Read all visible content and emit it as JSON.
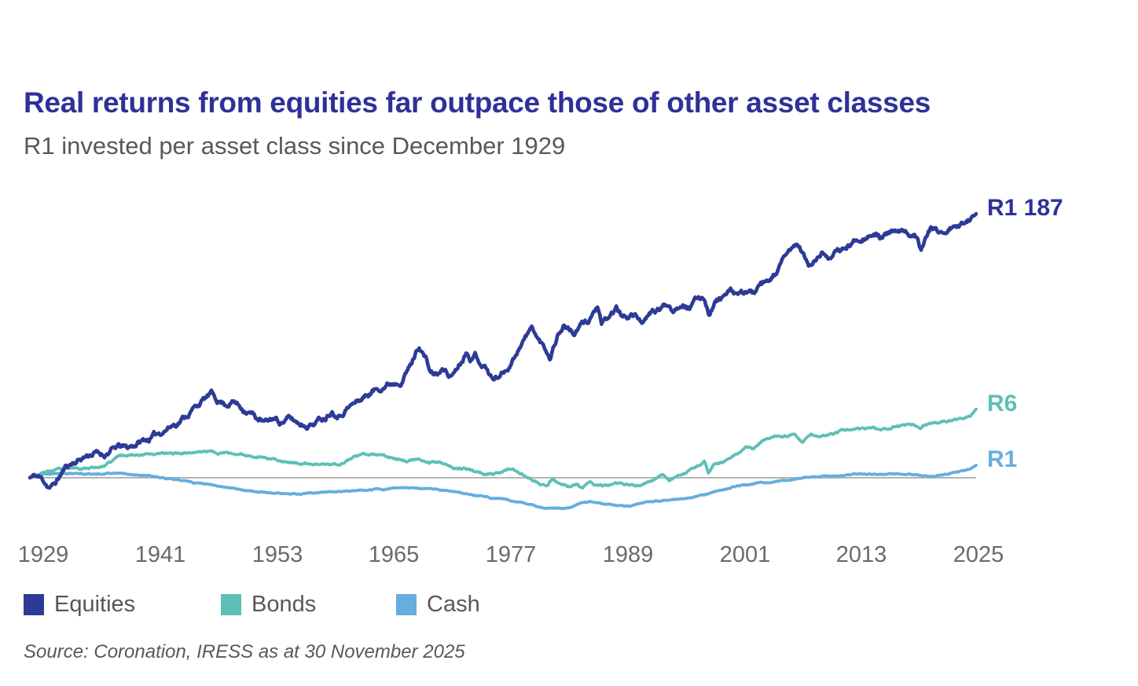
{
  "header": {
    "title": "Real returns from equities far outpace those of other asset classes",
    "subtitle": "R1 invested per asset class since December 1929"
  },
  "chart_data": {
    "type": "line",
    "title": "Real returns from equities far outpace those of other asset classes",
    "subtitle": "R1 invested per asset class since December 1929",
    "y_scale": "log",
    "grid": "off",
    "baseline": {
      "value": 1,
      "color": "#b5b5b5"
    },
    "x_range": [
      1929.92,
      2025.92
    ],
    "x_ticks": [
      {
        "label": "1929",
        "year": 1929
      },
      {
        "label": "1941",
        "year": 1941
      },
      {
        "label": "1953",
        "year": 1953
      },
      {
        "label": "1965",
        "year": 1965
      },
      {
        "label": "1977",
        "year": 1977
      },
      {
        "label": "1989",
        "year": 1989
      },
      {
        "label": "2001",
        "year": 2001
      },
      {
        "label": "2013",
        "year": 2013
      },
      {
        "label": "2025",
        "year": 2025
      }
    ],
    "series": [
      {
        "key": "equities",
        "name": "Equities",
        "color": "#2d3a96",
        "end_label": "R1 187",
        "final_value": 1187,
        "anchors": [
          [
            1929.92,
            1.0
          ],
          [
            1930.3,
            1.06
          ],
          [
            1930.8,
            1.02
          ],
          [
            1931.3,
            0.93
          ],
          [
            1931.8,
            0.8
          ],
          [
            1932.1,
            0.78
          ],
          [
            1932.6,
            0.9
          ],
          [
            1933.2,
            1.15
          ],
          [
            1933.6,
            1.35
          ],
          [
            1934.3,
            1.5
          ],
          [
            1935,
            1.65
          ],
          [
            1935.8,
            1.85
          ],
          [
            1936.6,
            1.95
          ],
          [
            1937.4,
            1.85
          ],
          [
            1938.2,
            2.1
          ],
          [
            1939,
            2.3
          ],
          [
            1939.8,
            2.2
          ],
          [
            1940.6,
            2.45
          ],
          [
            1941.4,
            2.7
          ],
          [
            1942.2,
            2.9
          ],
          [
            1943,
            3.3
          ],
          [
            1944,
            3.9
          ],
          [
            1945,
            4.5
          ],
          [
            1946,
            5.6
          ],
          [
            1947,
            7.2
          ],
          [
            1948.3,
            9.4
          ],
          [
            1949,
            8.0
          ],
          [
            1949.8,
            7.3
          ],
          [
            1950.6,
            7.8
          ],
          [
            1951.4,
            6.6
          ],
          [
            1952.2,
            5.9
          ],
          [
            1953,
            4.9
          ],
          [
            1953.8,
            4.3
          ],
          [
            1954.6,
            4.9
          ],
          [
            1955.4,
            4.5
          ],
          [
            1956.2,
            4.9
          ],
          [
            1957,
            4.4
          ],
          [
            1957.8,
            4.2
          ],
          [
            1958.6,
            4.3
          ],
          [
            1959.9,
            5.2
          ],
          [
            1960.6,
            6.3
          ],
          [
            1961.3,
            5.5
          ],
          [
            1962,
            6.5
          ],
          [
            1962.9,
            7.4
          ],
          [
            1964.4,
            9.7
          ],
          [
            1965.8,
            12.0
          ],
          [
            1967.1,
            13.3
          ],
          [
            1967.6,
            14.2
          ],
          [
            1968.6,
            21
          ],
          [
            1969.4,
            35
          ],
          [
            1970,
            26
          ],
          [
            1970.6,
            16.5
          ],
          [
            1971.3,
            16
          ],
          [
            1972,
            18
          ],
          [
            1972.6,
            15
          ],
          [
            1973.2,
            19
          ],
          [
            1974.3,
            31
          ],
          [
            1974.8,
            24.5
          ],
          [
            1975.1,
            27.8
          ],
          [
            1975.6,
            22.6
          ],
          [
            1976.2,
            19.4
          ],
          [
            1976.9,
            13.9
          ],
          [
            1977.5,
            15.5
          ],
          [
            1978.2,
            18
          ],
          [
            1979,
            25
          ],
          [
            1979.8,
            38
          ],
          [
            1980.9,
            56
          ],
          [
            1981.5,
            40
          ],
          [
            1982.1,
            33
          ],
          [
            1982.7,
            26
          ],
          [
            1983.4,
            45
          ],
          [
            1984.1,
            61
          ],
          [
            1984.7,
            53
          ],
          [
            1985.2,
            47
          ],
          [
            1985.9,
            60
          ],
          [
            1986.6,
            68
          ],
          [
            1987.5,
            100
          ],
          [
            1987.9,
            58
          ],
          [
            1988.6,
            70
          ],
          [
            1989.4,
            94
          ],
          [
            1990.1,
            72
          ],
          [
            1990.9,
            80
          ],
          [
            1991.6,
            74
          ],
          [
            1992.3,
            65
          ],
          [
            1993,
            83
          ],
          [
            1993.9,
            92
          ],
          [
            1994.6,
            105
          ],
          [
            1995.3,
            93
          ],
          [
            1996.1,
            112
          ],
          [
            1996.9,
            99
          ],
          [
            1997.6,
            118
          ],
          [
            1998.3,
            130
          ],
          [
            1998.8,
            83
          ],
          [
            1999.5,
            114
          ],
          [
            2000.3,
            132
          ],
          [
            2001.1,
            144
          ],
          [
            2001.9,
            130
          ],
          [
            2002.6,
            152
          ],
          [
            2003.3,
            140
          ],
          [
            2004.1,
            167
          ],
          [
            2004.9,
            180
          ],
          [
            2005.6,
            242
          ],
          [
            2006.4,
            334
          ],
          [
            2007.3,
            480
          ],
          [
            2007.9,
            512
          ],
          [
            2008.4,
            400
          ],
          [
            2008.9,
            282
          ],
          [
            2009.6,
            336
          ],
          [
            2010.3,
            404
          ],
          [
            2011.1,
            386
          ],
          [
            2012.1,
            430
          ],
          [
            2013.1,
            512
          ],
          [
            2014.1,
            634
          ],
          [
            2015.1,
            690
          ],
          [
            2016.1,
            630
          ],
          [
            2017.1,
            688
          ],
          [
            2018.1,
            708
          ],
          [
            2019.1,
            658
          ],
          [
            2019.9,
            700
          ],
          [
            2020.3,
            500
          ],
          [
            2020.9,
            662
          ],
          [
            2021.4,
            810
          ],
          [
            2022.1,
            726
          ],
          [
            2022.9,
            762
          ],
          [
            2023.6,
            845
          ],
          [
            2024.1,
            800
          ],
          [
            2024.7,
            933
          ],
          [
            2025.3,
            1040
          ],
          [
            2025.92,
            1187
          ]
        ]
      },
      {
        "key": "bonds",
        "name": "Bonds",
        "color": "#5fbfb6",
        "end_label": "R6",
        "final_value": 6.3,
        "anchors": [
          [
            1929.92,
            1.0
          ],
          [
            1931,
            1.12
          ],
          [
            1932,
            1.2
          ],
          [
            1933.5,
            1.26
          ],
          [
            1935,
            1.3
          ],
          [
            1936.5,
            1.32
          ],
          [
            1937.5,
            1.38
          ],
          [
            1938.3,
            1.55
          ],
          [
            1938.9,
            1.78
          ],
          [
            1939.8,
            1.86
          ],
          [
            1941,
            1.88
          ],
          [
            1942.5,
            1.92
          ],
          [
            1944,
            1.9
          ],
          [
            1945.5,
            1.96
          ],
          [
            1947,
            2.0
          ],
          [
            1948,
            2.05
          ],
          [
            1949,
            1.97
          ],
          [
            1950.5,
            1.9
          ],
          [
            1952,
            1.82
          ],
          [
            1953.5,
            1.76
          ],
          [
            1955,
            1.62
          ],
          [
            1956.5,
            1.52
          ],
          [
            1957.5,
            1.45
          ],
          [
            1958.5,
            1.42
          ],
          [
            1959.5,
            1.44
          ],
          [
            1960.5,
            1.41
          ],
          [
            1961.7,
            1.47
          ],
          [
            1962.7,
            1.76
          ],
          [
            1963.7,
            1.82
          ],
          [
            1964.7,
            1.84
          ],
          [
            1965.9,
            1.79
          ],
          [
            1967,
            1.68
          ],
          [
            1968,
            1.6
          ],
          [
            1969,
            1.62
          ],
          [
            1970.4,
            1.5
          ],
          [
            1971.4,
            1.56
          ],
          [
            1972.2,
            1.45
          ],
          [
            1972.9,
            1.32
          ],
          [
            1974,
            1.28
          ],
          [
            1975,
            1.18
          ],
          [
            1975.9,
            1.14
          ],
          [
            1976.9,
            1.1
          ],
          [
            1977.9,
            1.2
          ],
          [
            1978.9,
            1.29
          ],
          [
            1979.9,
            1.1
          ],
          [
            1980.9,
            0.92
          ],
          [
            1981.6,
            0.85
          ],
          [
            1982.3,
            0.78
          ],
          [
            1982.95,
            0.99
          ],
          [
            1983.7,
            0.86
          ],
          [
            1984.8,
            0.78
          ],
          [
            1985.4,
            0.84
          ],
          [
            1986,
            0.75
          ],
          [
            1986.7,
            0.87
          ],
          [
            1987.5,
            0.82
          ],
          [
            1988.5,
            0.8
          ],
          [
            1989.5,
            0.83
          ],
          [
            1990.5,
            0.84
          ],
          [
            1991.3,
            0.8
          ],
          [
            1992.1,
            0.85
          ],
          [
            1992.9,
            0.9
          ],
          [
            1993.6,
            1.02
          ],
          [
            1994.1,
            1.13
          ],
          [
            1994.8,
            0.93
          ],
          [
            1995.6,
            1.06
          ],
          [
            1996.4,
            1.12
          ],
          [
            1997.1,
            1.23
          ],
          [
            1997.8,
            1.36
          ],
          [
            1998.35,
            1.56
          ],
          [
            1998.75,
            1.13
          ],
          [
            1999.4,
            1.4
          ],
          [
            2000.2,
            1.5
          ],
          [
            2001.1,
            1.75
          ],
          [
            2001.9,
            2.0
          ],
          [
            2002.6,
            2.37
          ],
          [
            2003.3,
            2.2
          ],
          [
            2004.3,
            2.75
          ],
          [
            2005.9,
            3.05
          ],
          [
            2007.5,
            3.2
          ],
          [
            2008.3,
            2.6
          ],
          [
            2009.1,
            3.2
          ],
          [
            2010.7,
            3.05
          ],
          [
            2012.3,
            3.54
          ],
          [
            2013.9,
            3.6
          ],
          [
            2015.5,
            3.77
          ],
          [
            2016.3,
            3.54
          ],
          [
            2017.9,
            4.03
          ],
          [
            2019.5,
            4.2
          ],
          [
            2020.3,
            3.9
          ],
          [
            2021.1,
            4.2
          ],
          [
            2022.4,
            4.56
          ],
          [
            2023.6,
            4.7
          ],
          [
            2024.5,
            4.85
          ],
          [
            2025.3,
            5.1
          ],
          [
            2025.92,
            6.3
          ]
        ]
      },
      {
        "key": "cash",
        "name": "Cash",
        "color": "#65aedd",
        "end_label": "R1",
        "final_value": 1.4,
        "anchors": [
          [
            1929.92,
            1.0
          ],
          [
            1930.8,
            1.06
          ],
          [
            1931.8,
            1.1
          ],
          [
            1933,
            1.12
          ],
          [
            1934.5,
            1.12
          ],
          [
            1936,
            1.1
          ],
          [
            1937,
            1.12
          ],
          [
            1938.5,
            1.14
          ],
          [
            1940,
            1.12
          ],
          [
            1941.2,
            1.09
          ],
          [
            1942.2,
            1.04
          ],
          [
            1943.2,
            1.0
          ],
          [
            1944.2,
            0.96
          ],
          [
            1945.5,
            0.92
          ],
          [
            1947,
            0.86
          ],
          [
            1948.5,
            0.82
          ],
          [
            1950,
            0.78
          ],
          [
            1951.5,
            0.73
          ],
          [
            1953,
            0.69
          ],
          [
            1954.5,
            0.67
          ],
          [
            1956,
            0.65
          ],
          [
            1957.5,
            0.64
          ],
          [
            1959,
            0.66
          ],
          [
            1960.5,
            0.68
          ],
          [
            1962,
            0.7
          ],
          [
            1963.5,
            0.71
          ],
          [
            1965,
            0.73
          ],
          [
            1966.5,
            0.75
          ],
          [
            1968,
            0.76
          ],
          [
            1969.5,
            0.75
          ],
          [
            1971,
            0.73
          ],
          [
            1972.5,
            0.7
          ],
          [
            1974,
            0.65
          ],
          [
            1975.5,
            0.62
          ],
          [
            1977,
            0.58
          ],
          [
            1978.5,
            0.55
          ],
          [
            1980,
            0.5
          ],
          [
            1981.5,
            0.46
          ],
          [
            1983,
            0.44
          ],
          [
            1984.5,
            0.45
          ],
          [
            1985.8,
            0.5
          ],
          [
            1986.8,
            0.53
          ],
          [
            1988,
            0.5
          ],
          [
            1989.5,
            0.47
          ],
          [
            1990.8,
            0.47
          ],
          [
            1992.2,
            0.52
          ],
          [
            1993.8,
            0.54
          ],
          [
            1995.4,
            0.56
          ],
          [
            1997,
            0.58
          ],
          [
            1998.6,
            0.65
          ],
          [
            2000.2,
            0.73
          ],
          [
            2001.8,
            0.81
          ],
          [
            2003.4,
            0.86
          ],
          [
            2005.8,
            0.9
          ],
          [
            2008,
            1.0
          ],
          [
            2010.6,
            1.04
          ],
          [
            2013.8,
            1.09
          ],
          [
            2016,
            1.1
          ],
          [
            2018,
            1.1
          ],
          [
            2020,
            1.08
          ],
          [
            2021.8,
            1.04
          ],
          [
            2023,
            1.1
          ],
          [
            2024.4,
            1.18
          ],
          [
            2025.4,
            1.28
          ],
          [
            2025.92,
            1.4
          ]
        ]
      }
    ]
  },
  "legend": {
    "items": [
      {
        "label": "Equities"
      },
      {
        "label": "Bonds"
      },
      {
        "label": "Cash"
      }
    ]
  },
  "source": {
    "text": "Source: Coronation, IRESS as at 30 November 2025"
  }
}
